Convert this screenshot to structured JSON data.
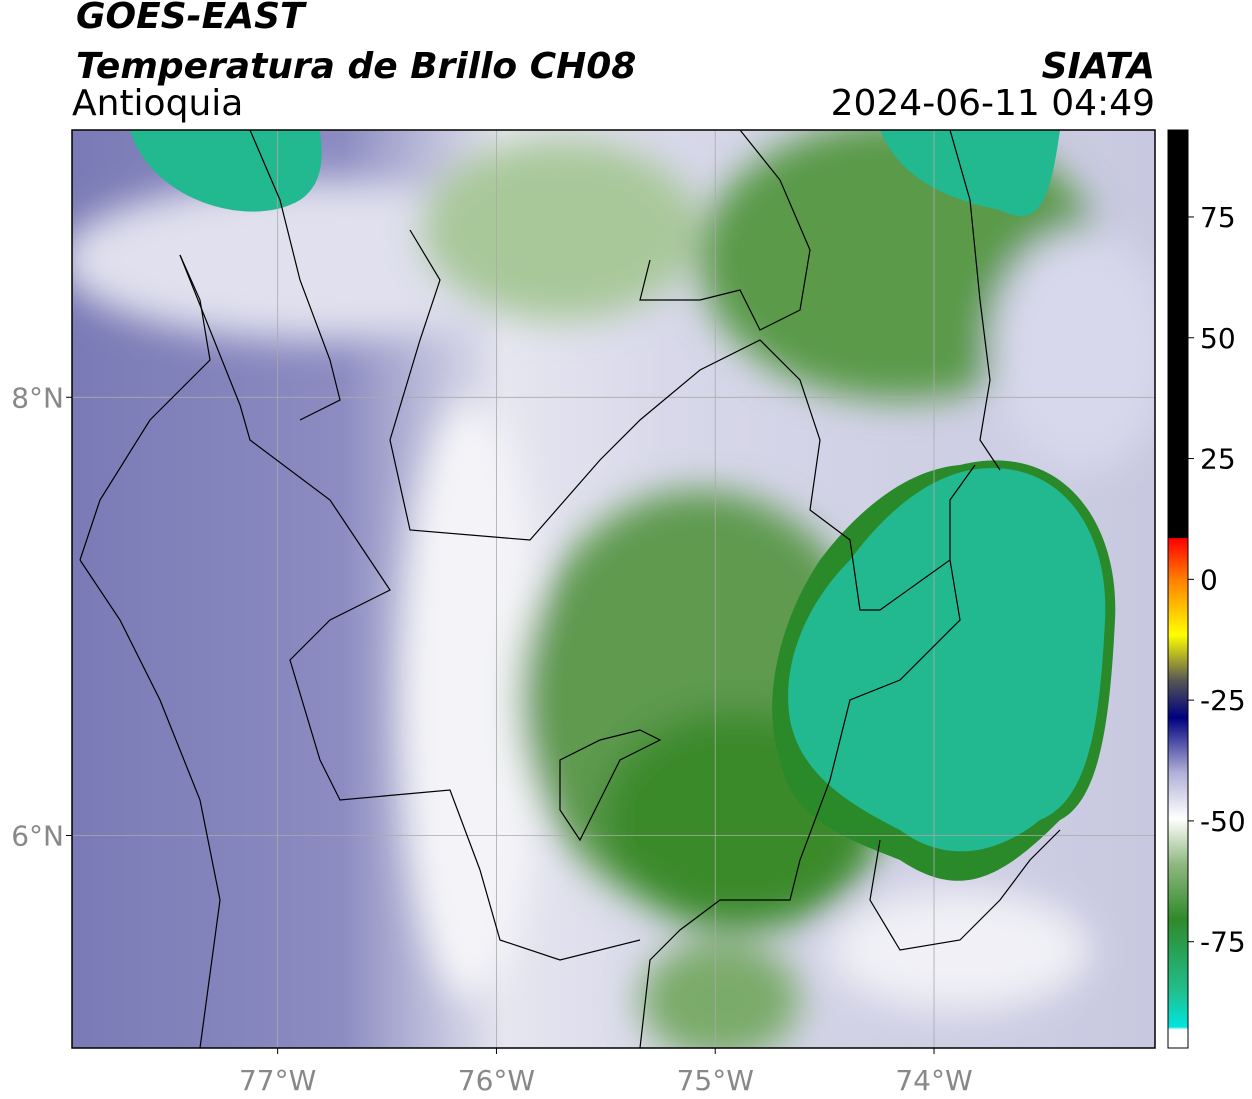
{
  "header": {
    "title": "GOES-EAST",
    "subtitle": "Temperatura de Brillo CH08",
    "region": "Antioquia",
    "source": "SIATA",
    "timestamp": "2024-06-11 04:49"
  },
  "map": {
    "xlim": [
      -77.94,
      -72.99
    ],
    "ylim": [
      5.03,
      9.22
    ],
    "xticks": [
      {
        "value": -77,
        "label": "77°W"
      },
      {
        "value": -76,
        "label": "76°W"
      },
      {
        "value": -75,
        "label": "75°W"
      },
      {
        "value": -74,
        "label": "74°W"
      }
    ],
    "yticks": [
      {
        "value": 6,
        "label": "6°N"
      },
      {
        "value": 8,
        "label": "8°N"
      }
    ],
    "grid": true
  },
  "colorbar": {
    "lim": [
      -97,
      93
    ],
    "ticks": [
      -75,
      -50,
      -25,
      0,
      25,
      50,
      75
    ]
  }
}
